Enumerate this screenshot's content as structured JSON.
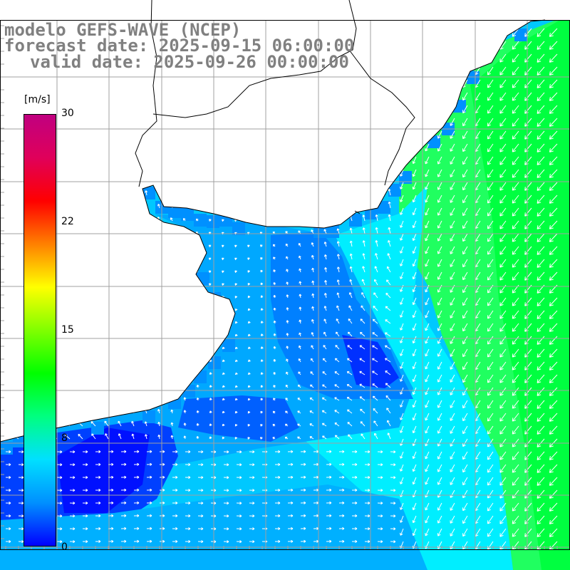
{
  "titles": {
    "model": "modelo GEFS-WAVE (NCEP)",
    "forecast": "forecast date: 2025-09-15 06:00:00",
    "valid": "valid date: 2025-09-26 00:00:00"
  },
  "colorbar": {
    "unit": "[m/s]",
    "ticks": [
      "30",
      "22",
      "15",
      "8",
      "0"
    ],
    "colors": [
      "#0000ff",
      "#0090ff",
      "#00e0ff",
      "#00ff80",
      "#00ff00",
      "#80ff00",
      "#ffff00",
      "#ff8000",
      "#ff0000",
      "#e0005a",
      "#c00080"
    ]
  },
  "map_colors": {
    "deep_blue": "#0000ff",
    "blue": "#0060ff",
    "light_blue": "#00a0ff",
    "cyan": "#00ffff",
    "green": "#00ff40"
  }
}
